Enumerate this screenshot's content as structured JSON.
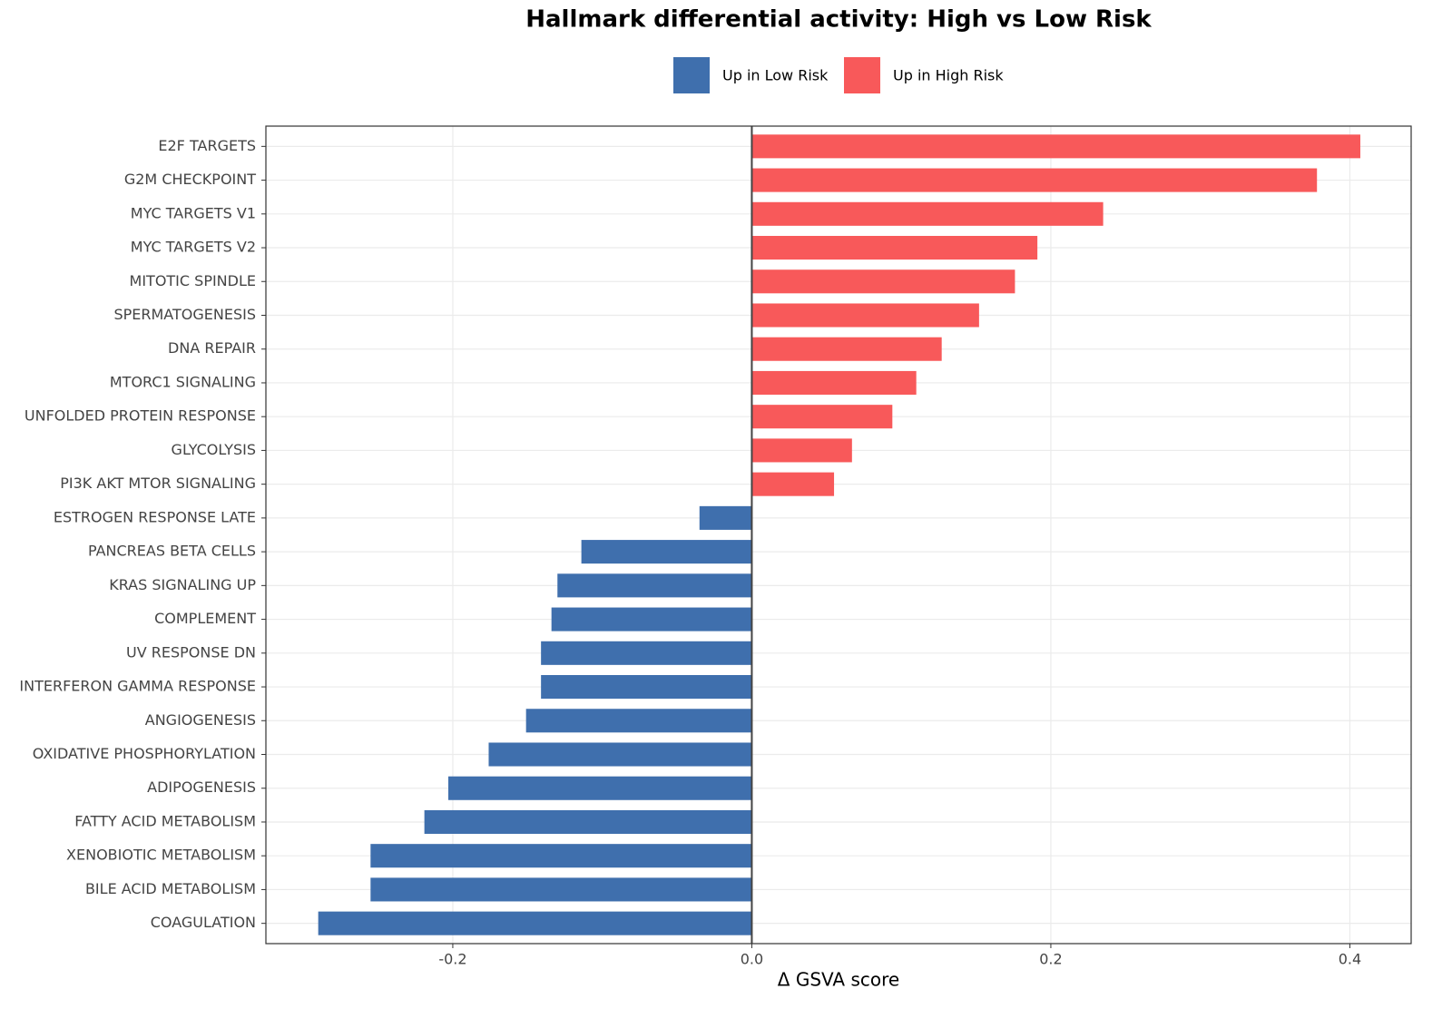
{
  "chart_data": {
    "type": "bar",
    "orientation": "horizontal",
    "title": "Hallmark differential activity: High vs Low Risk",
    "xlabel": "Δ GSVA score",
    "categories": [
      "E2F TARGETS",
      "G2M CHECKPOINT",
      "MYC TARGETS V1",
      "MYC TARGETS V2",
      "MITOTIC SPINDLE",
      "SPERMATOGENESIS",
      "DNA REPAIR",
      "MTORC1 SIGNALING",
      "UNFOLDED PROTEIN RESPONSE",
      "GLYCOLYSIS",
      "PI3K AKT MTOR SIGNALING",
      "ESTROGEN RESPONSE LATE",
      "PANCREAS BETA CELLS",
      "KRAS SIGNALING UP",
      "COMPLEMENT",
      "UV RESPONSE DN",
      "INTERFERON GAMMA RESPONSE",
      "ANGIOGENESIS",
      "OXIDATIVE PHOSPHORYLATION",
      "ADIPOGENESIS",
      "FATTY ACID METABOLISM",
      "XENOBIOTIC METABOLISM",
      "BILE ACID METABOLISM",
      "COAGULATION"
    ],
    "series": [
      {
        "name": "Up in Low Risk",
        "color": "#3f6fad",
        "values": [
          null,
          null,
          null,
          null,
          null,
          null,
          null,
          null,
          null,
          null,
          null,
          -0.035,
          -0.114,
          -0.13,
          -0.134,
          -0.141,
          -0.141,
          -0.151,
          -0.176,
          -0.203,
          -0.219,
          -0.255,
          -0.255,
          -0.29
        ]
      },
      {
        "name": "Up in High Risk",
        "color": "#f8595a",
        "values": [
          0.407,
          0.378,
          0.235,
          0.191,
          0.176,
          0.152,
          0.127,
          0.11,
          0.094,
          0.067,
          0.055,
          null,
          null,
          null,
          null,
          null,
          null,
          null,
          null,
          null,
          null,
          null,
          null,
          null
        ]
      }
    ],
    "xlim": [
      -0.325,
      0.441
    ],
    "xticks": [
      -0.2,
      {
        "value": 0,
        "label": "0.0"
      },
      0.2,
      0.4
    ],
    "grid": true
  }
}
